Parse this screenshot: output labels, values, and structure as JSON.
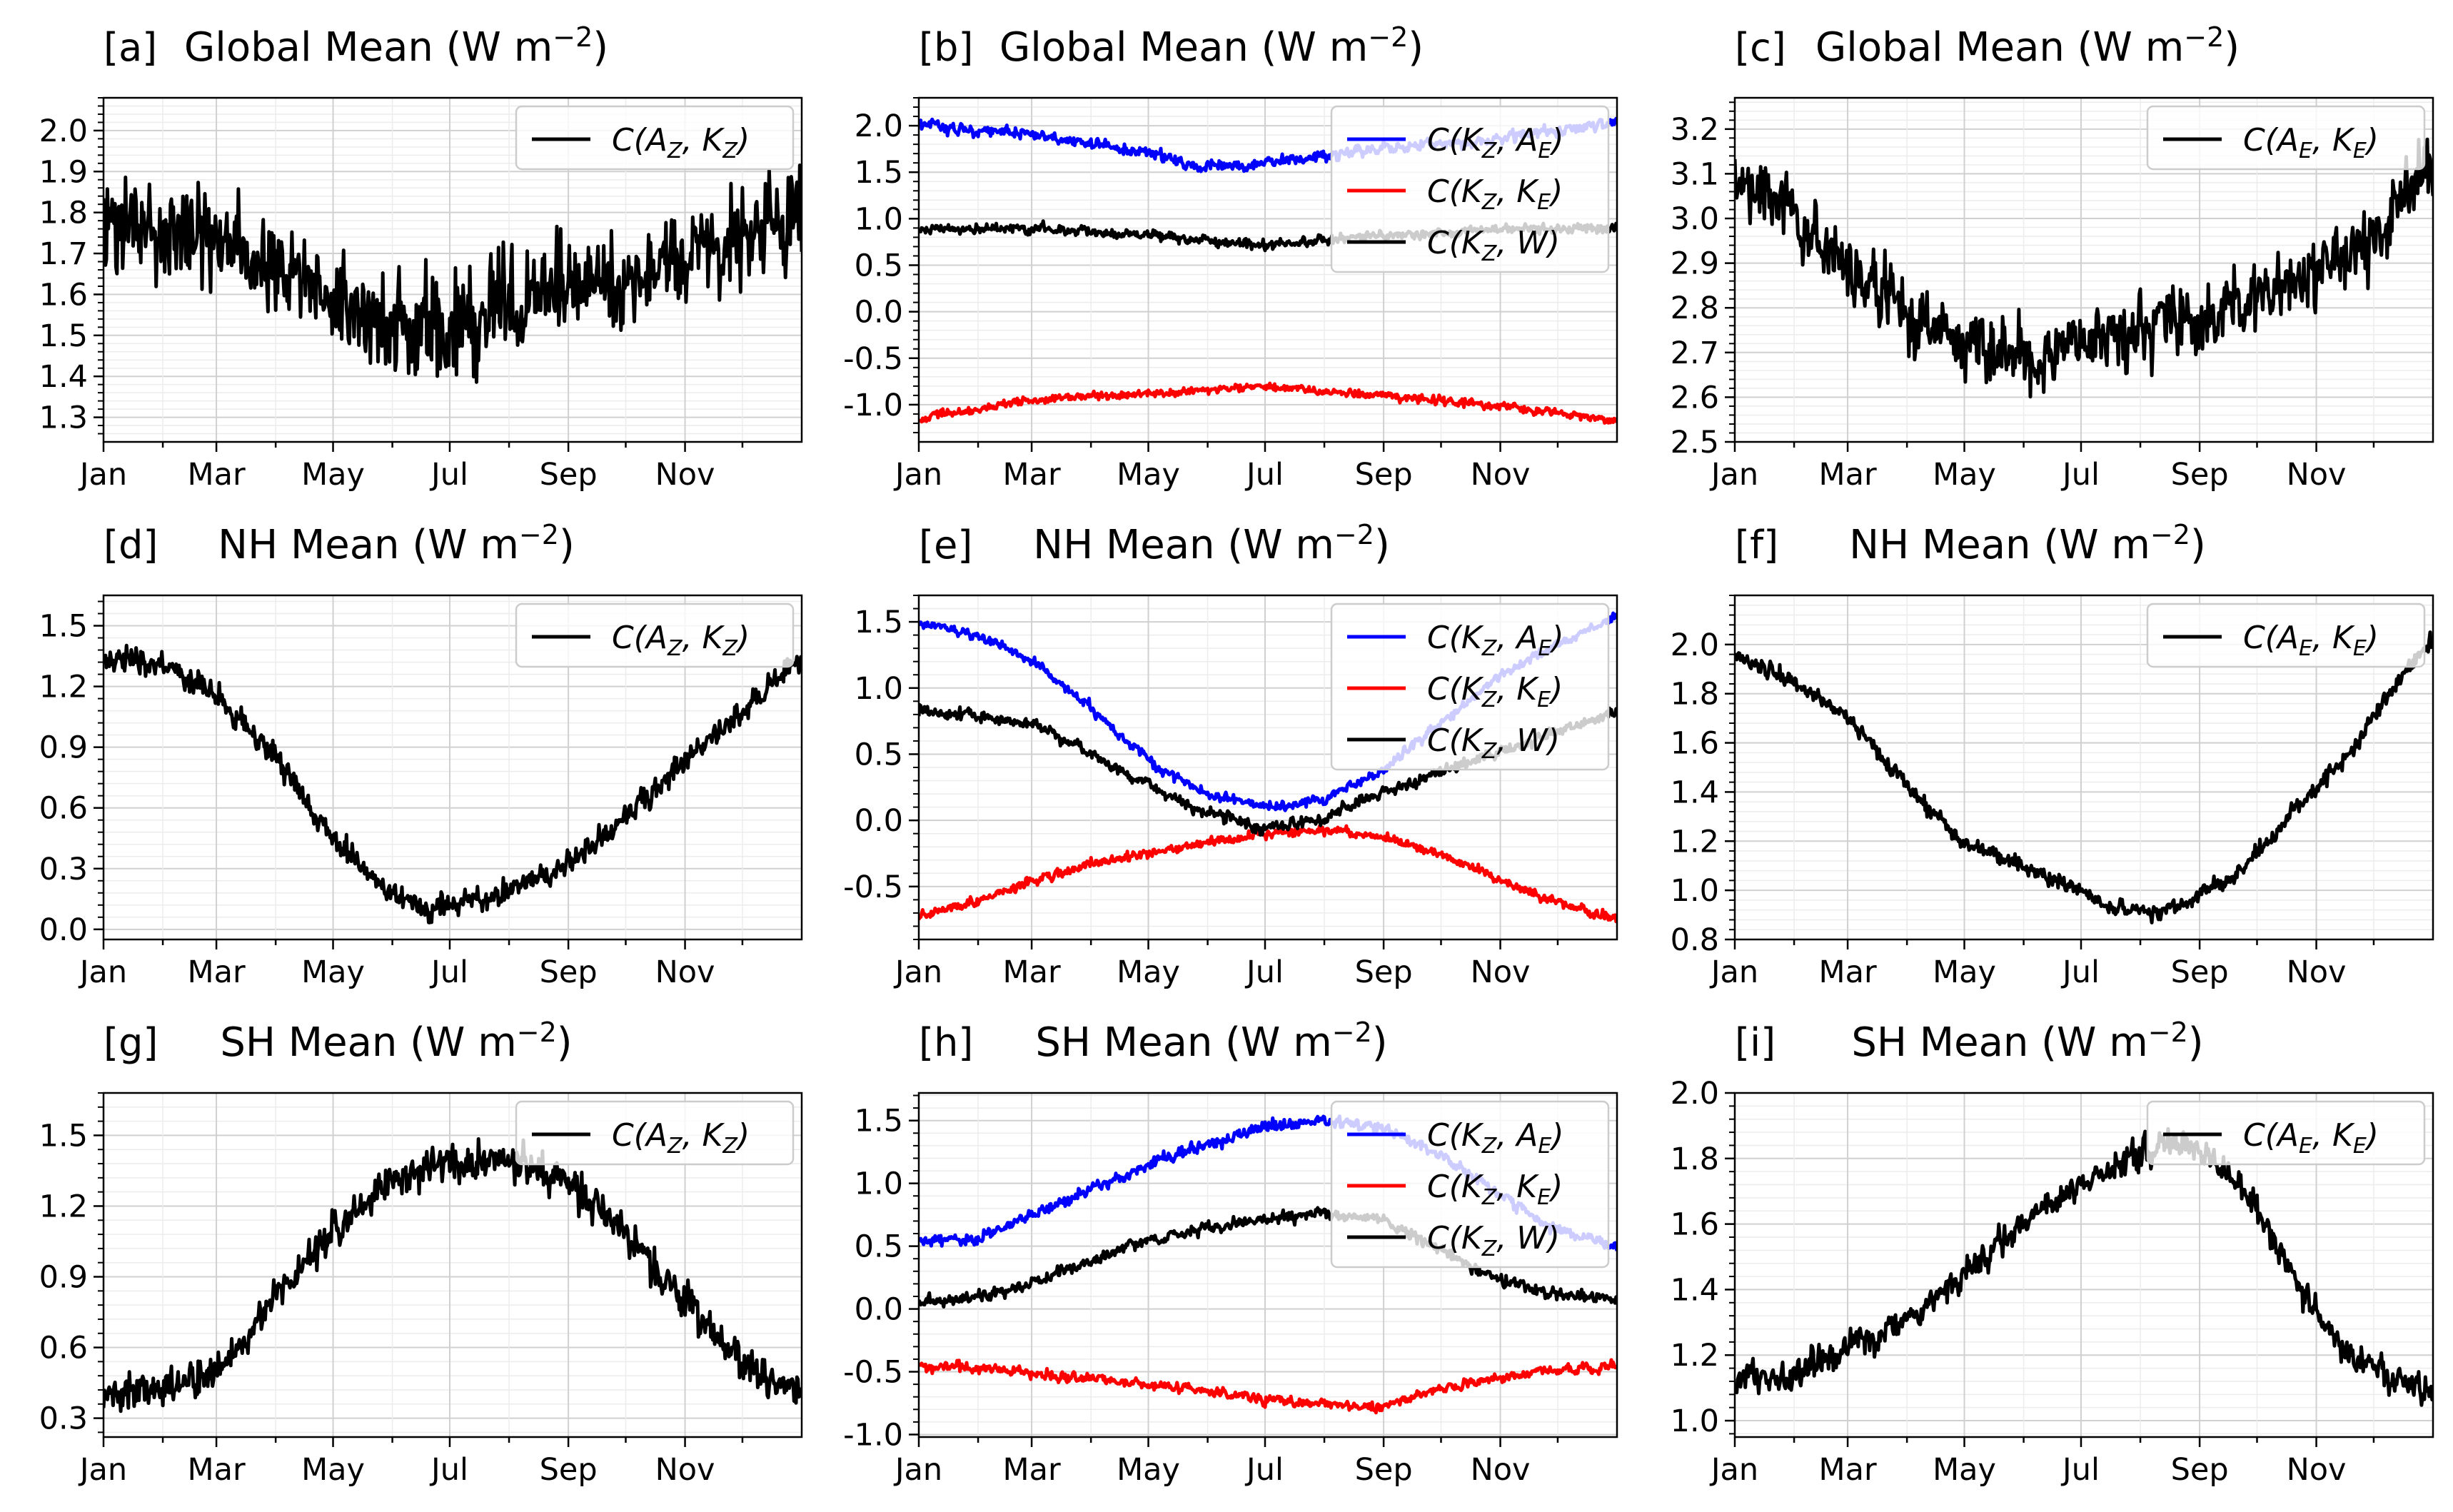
{
  "months": [
    "Jan",
    "Mar",
    "May",
    "Jul",
    "Sep",
    "Nov"
  ],
  "chart_data": [
    {
      "id": "a",
      "type": "line",
      "panel_label": "[a]",
      "title": "Global Mean (W m⁻²)",
      "ylim": [
        1.24,
        2.08
      ],
      "yticks": [
        "1.3",
        "1.4",
        "1.5",
        "1.6",
        "1.7",
        "1.8",
        "1.9",
        "2.0"
      ],
      "grid": true,
      "legend_position": "top-right",
      "series": [
        {
          "name": "C(A_Z, K_Z)",
          "color": "#000000",
          "amplitude": 0.12,
          "noise": 0.035,
          "x": [
            0,
            60,
            120,
            170,
            240,
            300,
            365
          ],
          "y": [
            1.78,
            1.73,
            1.58,
            1.52,
            1.6,
            1.68,
            1.8
          ]
        }
      ]
    },
    {
      "id": "b",
      "type": "line",
      "panel_label": "[b]",
      "title": "Global Mean (W m⁻²)",
      "ylim": [
        -1.4,
        2.3
      ],
      "yticks": [
        "-1.0",
        "-0.5",
        "0.0",
        "0.5",
        "1.0",
        "1.5",
        "2.0"
      ],
      "grid": true,
      "legend_position": "top-right",
      "series": [
        {
          "name": "C(K_Z, A_E)",
          "color": "#0000ff",
          "amplitude": 0.05,
          "noise": 0.03,
          "x": [
            0,
            60,
            120,
            150,
            180,
            240,
            300,
            365
          ],
          "y": [
            2.0,
            1.9,
            1.7,
            1.55,
            1.6,
            1.75,
            1.85,
            2.05
          ]
        },
        {
          "name": "C(K_Z, K_E)",
          "color": "#ff0000",
          "amplitude": 0.04,
          "noise": 0.02,
          "x": [
            0,
            60,
            120,
            180,
            240,
            300,
            365
          ],
          "y": [
            -1.15,
            -0.95,
            -0.88,
            -0.8,
            -0.9,
            -1.0,
            -1.18
          ]
        },
        {
          "name": "C(K_Z, W)",
          "color": "#000000",
          "amplitude": 0.05,
          "noise": 0.02,
          "x": [
            0,
            60,
            120,
            180,
            240,
            300,
            365
          ],
          "y": [
            0.88,
            0.9,
            0.82,
            0.72,
            0.82,
            0.88,
            0.9
          ]
        }
      ]
    },
    {
      "id": "c",
      "type": "line",
      "panel_label": "[c]",
      "title": "Global Mean (W m⁻²)",
      "ylim": [
        2.5,
        3.27
      ],
      "yticks": [
        "2.5",
        "2.6",
        "2.7",
        "2.8",
        "2.9",
        "3.0",
        "3.1",
        "3.2"
      ],
      "grid": true,
      "legend_position": "top-right",
      "series": [
        {
          "name": "C(A_E, K_E)",
          "color": "#000000",
          "amplitude": 0.07,
          "noise": 0.03,
          "x": [
            0,
            30,
            60,
            90,
            120,
            150,
            180,
            210,
            240,
            270,
            300,
            330,
            365
          ],
          "y": [
            3.1,
            3.0,
            2.9,
            2.78,
            2.72,
            2.7,
            2.72,
            2.75,
            2.78,
            2.82,
            2.87,
            2.95,
            3.1
          ]
        }
      ]
    },
    {
      "id": "d",
      "type": "line",
      "panel_label": "[d]",
      "title": "NH Mean (W m⁻²)",
      "ylim": [
        -0.05,
        1.65
      ],
      "yticks": [
        "0.0",
        "0.3",
        "0.6",
        "0.9",
        "1.2",
        "1.5"
      ],
      "grid": true,
      "legend_position": "top-right",
      "series": [
        {
          "name": "C(A_Z, K_Z)",
          "color": "#000000",
          "amplitude": 0.06,
          "noise": 0.02,
          "x": [
            0,
            30,
            60,
            90,
            120,
            150,
            170,
            200,
            240,
            270,
            300,
            330,
            365
          ],
          "y": [
            1.35,
            1.32,
            1.15,
            0.85,
            0.45,
            0.18,
            0.12,
            0.15,
            0.3,
            0.52,
            0.8,
            1.05,
            1.35
          ]
        }
      ]
    },
    {
      "id": "e",
      "type": "line",
      "panel_label": "[e]",
      "title": "NH Mean (W m⁻²)",
      "ylim": [
        -0.9,
        1.7
      ],
      "yticks": [
        "-0.5",
        "0.0",
        "0.5",
        "1.0",
        "1.5"
      ],
      "grid": true,
      "legend_position": "top-right",
      "series": [
        {
          "name": "C(K_Z, A_E)",
          "color": "#0000ff",
          "amplitude": 0.03,
          "noise": 0.02,
          "x": [
            0,
            30,
            60,
            90,
            120,
            150,
            180,
            210,
            240,
            270,
            300,
            330,
            365
          ],
          "y": [
            1.5,
            1.4,
            1.2,
            0.85,
            0.45,
            0.2,
            0.1,
            0.15,
            0.35,
            0.7,
            1.05,
            1.3,
            1.55
          ]
        },
        {
          "name": "C(K_Z, K_E)",
          "color": "#ff0000",
          "amplitude": 0.03,
          "noise": 0.015,
          "x": [
            0,
            30,
            60,
            90,
            120,
            150,
            180,
            210,
            240,
            270,
            300,
            330,
            365
          ],
          "y": [
            -0.72,
            -0.62,
            -0.45,
            -0.33,
            -0.25,
            -0.18,
            -0.1,
            -0.07,
            -0.12,
            -0.25,
            -0.42,
            -0.6,
            -0.75
          ]
        },
        {
          "name": "C(K_Z, W)",
          "color": "#000000",
          "amplitude": 0.04,
          "noise": 0.02,
          "x": [
            0,
            30,
            60,
            90,
            120,
            150,
            180,
            210,
            240,
            270,
            300,
            330,
            365
          ],
          "y": [
            0.82,
            0.8,
            0.72,
            0.5,
            0.25,
            0.05,
            -0.05,
            0.0,
            0.2,
            0.35,
            0.5,
            0.65,
            0.82
          ]
        }
      ]
    },
    {
      "id": "f",
      "type": "line",
      "panel_label": "[f]",
      "title": "NH Mean (W m⁻²)",
      "ylim": [
        0.8,
        2.2
      ],
      "yticks": [
        "0.8",
        "1.0",
        "1.2",
        "1.4",
        "1.6",
        "1.8",
        "2.0"
      ],
      "grid": true,
      "legend_position": "top-right",
      "series": [
        {
          "name": "C(A_E, K_E)",
          "color": "#000000",
          "amplitude": 0.03,
          "noise": 0.015,
          "x": [
            0,
            30,
            60,
            90,
            120,
            150,
            180,
            200,
            230,
            260,
            290,
            320,
            350,
            365
          ],
          "y": [
            1.95,
            1.85,
            1.7,
            1.42,
            1.2,
            1.1,
            1.0,
            0.92,
            0.92,
            1.05,
            1.3,
            1.55,
            1.88,
            2.02
          ]
        }
      ]
    },
    {
      "id": "g",
      "type": "line",
      "panel_label": "[g]",
      "title": "SH Mean (W m⁻²)",
      "ylim": [
        0.22,
        1.68
      ],
      "yticks": [
        "0.3",
        "0.6",
        "0.9",
        "1.2",
        "1.5"
      ],
      "grid": true,
      "legend_position": "top-right",
      "series": [
        {
          "name": "C(A_Z, K_Z)",
          "color": "#000000",
          "amplitude": 0.08,
          "noise": 0.025,
          "x": [
            0,
            30,
            60,
            90,
            120,
            150,
            180,
            210,
            240,
            270,
            300,
            330,
            365
          ],
          "y": [
            0.4,
            0.42,
            0.5,
            0.82,
            1.1,
            1.3,
            1.38,
            1.4,
            1.32,
            1.1,
            0.82,
            0.55,
            0.4
          ]
        }
      ]
    },
    {
      "id": "h",
      "type": "line",
      "panel_label": "[h]",
      "title": "SH Mean (W m⁻²)",
      "ylim": [
        -1.02,
        1.72
      ],
      "yticks": [
        "-1.0",
        "-0.5",
        "0.0",
        "0.5",
        "1.0",
        "1.5"
      ],
      "grid": true,
      "legend_position": "top-right",
      "series": [
        {
          "name": "C(K_Z, A_E)",
          "color": "#0000ff",
          "amplitude": 0.04,
          "noise": 0.02,
          "x": [
            0,
            30,
            60,
            90,
            120,
            150,
            180,
            210,
            240,
            270,
            300,
            330,
            365
          ],
          "y": [
            0.55,
            0.55,
            0.75,
            0.95,
            1.15,
            1.3,
            1.45,
            1.5,
            1.45,
            1.25,
            0.95,
            0.65,
            0.5
          ]
        },
        {
          "name": "C(K_Z, K_E)",
          "color": "#ff0000",
          "amplitude": 0.03,
          "noise": 0.02,
          "x": [
            0,
            30,
            60,
            90,
            120,
            150,
            180,
            210,
            240,
            270,
            300,
            330,
            365
          ],
          "y": [
            -0.45,
            -0.48,
            -0.52,
            -0.55,
            -0.6,
            -0.65,
            -0.72,
            -0.75,
            -0.78,
            -0.65,
            -0.55,
            -0.5,
            -0.45
          ]
        },
        {
          "name": "C(K_Z, W)",
          "color": "#000000",
          "amplitude": 0.04,
          "noise": 0.02,
          "x": [
            0,
            30,
            60,
            90,
            120,
            150,
            180,
            210,
            240,
            270,
            300,
            330,
            365
          ],
          "y": [
            0.05,
            0.1,
            0.2,
            0.38,
            0.55,
            0.65,
            0.72,
            0.75,
            0.72,
            0.5,
            0.25,
            0.12,
            0.08
          ]
        }
      ]
    },
    {
      "id": "i",
      "type": "line",
      "panel_label": "[i]",
      "title": "SH Mean (W m⁻²)",
      "ylim": [
        0.95,
        2.0
      ],
      "yticks": [
        "1.0",
        "1.2",
        "1.4",
        "1.6",
        "1.8",
        "2.0"
      ],
      "grid": true,
      "legend_position": "top-right",
      "series": [
        {
          "name": "C(A_E, K_E)",
          "color": "#000000",
          "amplitude": 0.04,
          "noise": 0.02,
          "x": [
            0,
            30,
            60,
            90,
            120,
            150,
            180,
            210,
            230,
            250,
            270,
            290,
            320,
            350,
            365
          ],
          "y": [
            1.12,
            1.15,
            1.22,
            1.3,
            1.45,
            1.6,
            1.72,
            1.8,
            1.85,
            1.8,
            1.68,
            1.45,
            1.2,
            1.12,
            1.08
          ]
        }
      ]
    }
  ]
}
